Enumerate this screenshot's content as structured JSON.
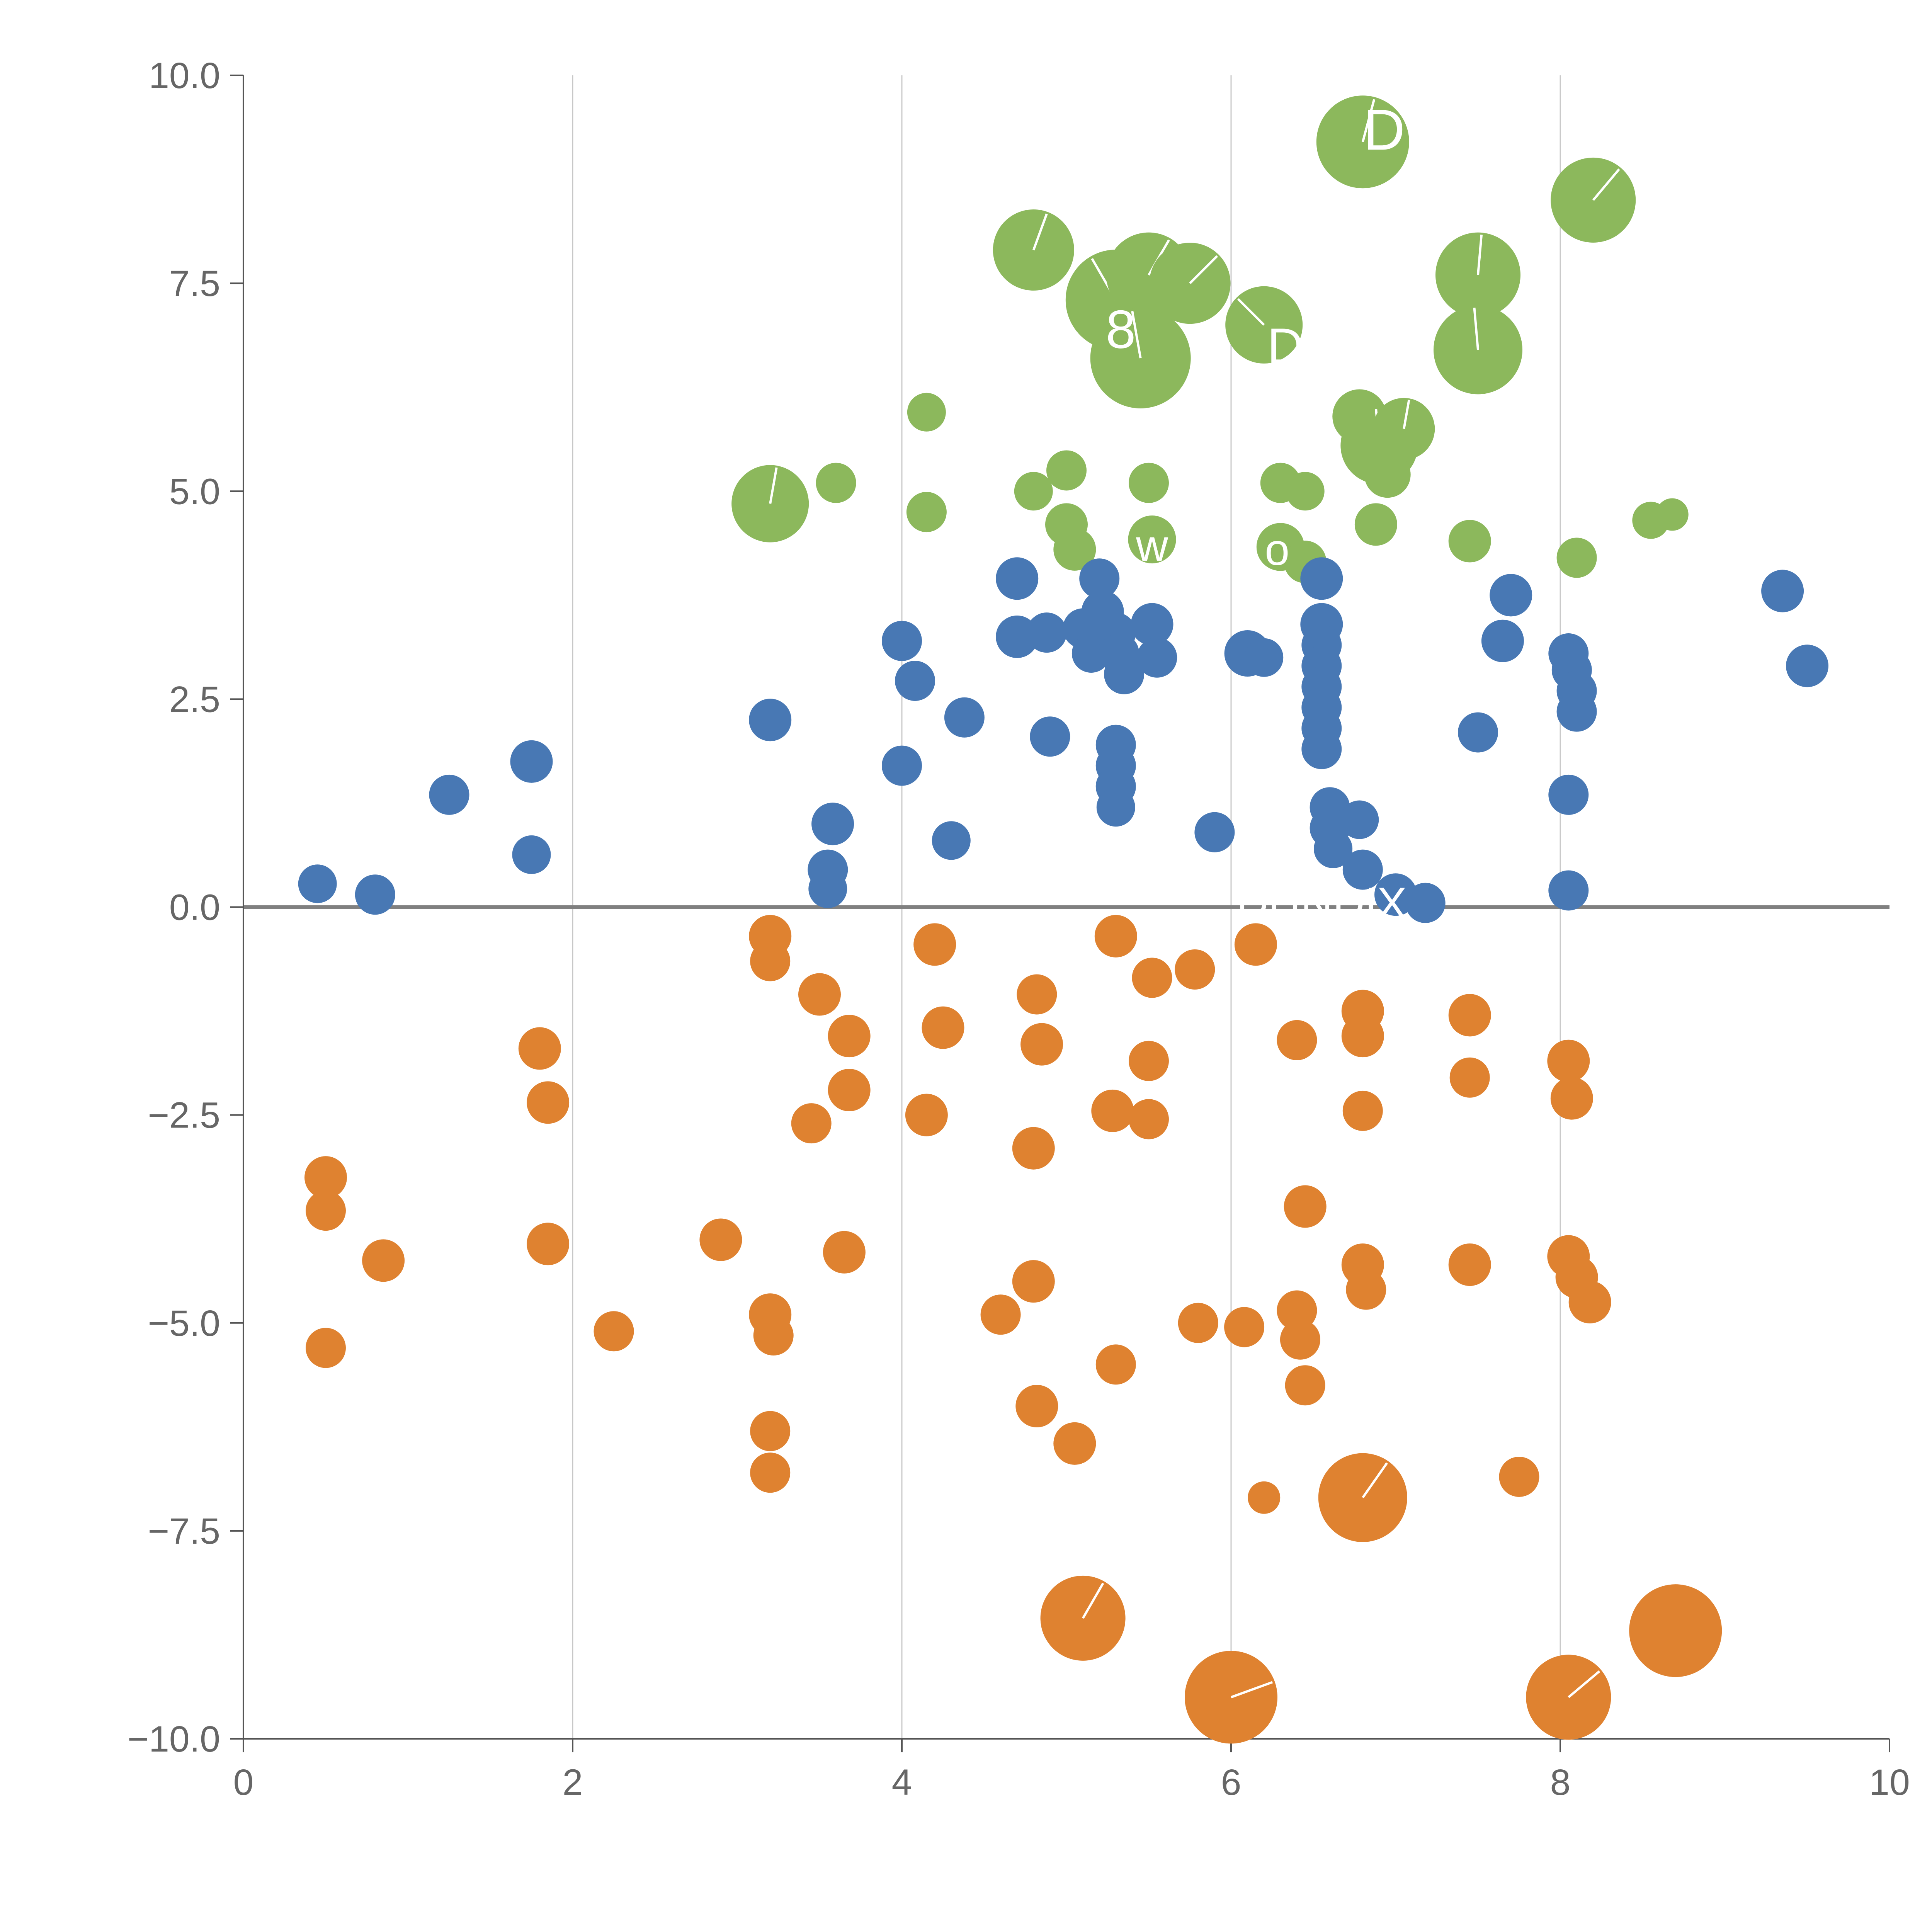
{
  "chart_data": {
    "type": "scatter",
    "title": "",
    "xlabel": "",
    "ylabel": "",
    "xlim": [
      0,
      10
    ],
    "ylim": [
      -10,
      10
    ],
    "legend": "none",
    "grid": {
      "vertical_gridlines_x": [
        2,
        4,
        6,
        8
      ],
      "gridline_color": "#c8c8c8",
      "zero_line_y": 0,
      "zero_line_color": "#808080"
    },
    "axis": {
      "spine_color": "#555555",
      "tick_color": "#555555",
      "label_color": "#666666",
      "x_ticks": [
        {
          "v": 0,
          "label": "0"
        },
        {
          "v": 2,
          "label": "2"
        },
        {
          "v": 4,
          "label": "4"
        },
        {
          "v": 6,
          "label": "6"
        },
        {
          "v": 8,
          "label": "8"
        },
        {
          "v": 10,
          "label": "10"
        }
      ],
      "y_ticks": [
        {
          "v": 10,
          "label": "10.0"
        },
        {
          "v": 7.5,
          "label": "7.5"
        },
        {
          "v": 5,
          "label": "5.0"
        },
        {
          "v": 2.5,
          "label": "2.5"
        },
        {
          "v": 0,
          "label": "0.0"
        },
        {
          "v": -2.5,
          "label": "-2.5"
        },
        {
          "v": -5,
          "label": "-5.0"
        },
        {
          "v": -7.5,
          "label": "-7.5"
        },
        {
          "v": -10,
          "label": "-10.0"
        }
      ]
    },
    "series": [
      {
        "name": "green-cluster",
        "color": "#8CB85C",
        "points": [
          [
            3.2,
            4.85,
            100,
            -80
          ],
          [
            3.6,
            5.1,
            52
          ],
          [
            4.15,
            5.95,
            50
          ],
          [
            4.15,
            4.75,
            52
          ],
          [
            4.8,
            7.9,
            105,
            -70
          ],
          [
            4.8,
            5.0,
            50
          ],
          [
            5.0,
            5.25,
            52
          ],
          [
            5.0,
            4.6,
            55
          ],
          [
            5.05,
            4.3,
            55
          ],
          [
            5.3,
            7.3,
            130,
            -120
          ],
          [
            5.5,
            7.6,
            110,
            -60
          ],
          [
            5.45,
            6.6,
            130,
            -100
          ],
          [
            5.75,
            7.5,
            105,
            -45
          ],
          [
            5.5,
            5.1,
            52
          ],
          [
            5.52,
            4.42,
            62
          ],
          [
            6.2,
            7.0,
            100,
            -135
          ],
          [
            6.3,
            5.1,
            52
          ],
          [
            6.45,
            5.0,
            50
          ],
          [
            6.3,
            4.33,
            62
          ],
          [
            6.45,
            4.15,
            55
          ],
          [
            6.8,
            9.2,
            120,
            -75
          ],
          [
            6.78,
            5.9,
            70
          ],
          [
            6.9,
            5.55,
            100,
            -95
          ],
          [
            6.95,
            5.2,
            60
          ],
          [
            6.88,
            4.6,
            55
          ],
          [
            7.05,
            5.75,
            80,
            -80
          ],
          [
            7.5,
            7.6,
            110,
            -85
          ],
          [
            7.5,
            6.7,
            115,
            -95
          ],
          [
            7.45,
            4.4,
            55
          ],
          [
            8.2,
            8.5,
            110,
            -50
          ],
          [
            8.1,
            4.2,
            52
          ],
          [
            8.55,
            4.65,
            48
          ],
          [
            8.68,
            4.72,
            42
          ]
        ]
      },
      {
        "name": "blue-cluster",
        "color": "#4878B4",
        "points": [
          [
            0.45,
            0.28,
            50
          ],
          [
            0.8,
            0.15,
            52
          ],
          [
            1.25,
            1.35,
            52
          ],
          [
            1.75,
            1.75,
            55
          ],
          [
            1.75,
            0.63,
            50
          ],
          [
            3.2,
            2.25,
            55
          ],
          [
            3.55,
            0.45,
            52
          ],
          [
            3.55,
            0.22,
            50
          ],
          [
            3.58,
            1.0,
            55
          ],
          [
            4.0,
            3.2,
            52
          ],
          [
            4.08,
            2.72,
            52
          ],
          [
            4.0,
            1.7,
            52
          ],
          [
            4.38,
            2.28,
            52
          ],
          [
            4.3,
            0.8,
            50
          ],
          [
            4.7,
            3.95,
            55
          ],
          [
            4.7,
            3.25,
            55
          ],
          [
            4.88,
            3.3,
            52
          ],
          [
            4.9,
            2.05,
            52
          ],
          [
            5.1,
            3.35,
            52
          ],
          [
            5.15,
            3.05,
            50
          ],
          [
            5.2,
            3.95,
            52
          ],
          [
            5.22,
            3.55,
            55
          ],
          [
            5.3,
            3.3,
            52
          ],
          [
            5.32,
            3.05,
            52
          ],
          [
            5.35,
            2.8,
            52
          ],
          [
            5.3,
            1.95,
            52
          ],
          [
            5.3,
            1.7,
            52
          ],
          [
            5.3,
            1.45,
            52
          ],
          [
            5.3,
            1.2,
            50
          ],
          [
            5.52,
            3.4,
            55
          ],
          [
            5.55,
            3.0,
            52
          ],
          [
            5.9,
            0.9,
            52
          ],
          [
            6.1,
            3.05,
            60
          ],
          [
            6.2,
            3.0,
            50
          ],
          [
            6.55,
            3.95,
            55
          ],
          [
            6.55,
            3.4,
            55
          ],
          [
            6.55,
            3.15,
            52
          ],
          [
            6.55,
            2.9,
            52
          ],
          [
            6.55,
            2.65,
            52
          ],
          [
            6.55,
            2.4,
            52
          ],
          [
            6.55,
            2.15,
            52
          ],
          [
            6.55,
            1.9,
            52
          ],
          [
            6.6,
            1.2,
            52
          ],
          [
            6.6,
            0.95,
            52
          ],
          [
            6.62,
            0.7,
            50
          ],
          [
            6.78,
            1.05,
            50
          ],
          [
            6.8,
            0.45,
            52
          ],
          [
            7.0,
            0.15,
            55
          ],
          [
            7.18,
            0.05,
            52
          ],
          [
            7.5,
            2.1,
            52
          ],
          [
            7.7,
            3.75,
            55
          ],
          [
            7.65,
            3.2,
            55
          ],
          [
            8.05,
            3.05,
            52
          ],
          [
            8.07,
            2.85,
            52
          ],
          [
            8.1,
            2.6,
            52
          ],
          [
            8.1,
            2.35,
            52
          ],
          [
            8.05,
            1.35,
            52
          ],
          [
            8.05,
            0.2,
            52
          ],
          [
            9.35,
            3.8,
            55
          ],
          [
            9.5,
            2.9,
            55
          ]
        ]
      },
      {
        "name": "orange-cluster",
        "color": "#DF8230",
        "points": [
          [
            0.5,
            -3.25,
            55
          ],
          [
            0.5,
            -3.65,
            52
          ],
          [
            0.5,
            -5.3,
            52
          ],
          [
            0.85,
            -4.25,
            55
          ],
          [
            1.8,
            -1.7,
            55
          ],
          [
            1.85,
            -2.35,
            55
          ],
          [
            1.85,
            -4.05,
            55
          ],
          [
            2.25,
            -5.1,
            52
          ],
          [
            2.9,
            -4.0,
            55
          ],
          [
            3.2,
            -0.35,
            55
          ],
          [
            3.2,
            -0.65,
            52
          ],
          [
            3.2,
            -4.9,
            55
          ],
          [
            3.22,
            -5.15,
            52
          ],
          [
            3.2,
            -6.3,
            52
          ],
          [
            3.2,
            -6.8,
            52
          ],
          [
            3.5,
            -1.05,
            55
          ],
          [
            3.68,
            -1.55,
            55
          ],
          [
            3.45,
            -2.6,
            52
          ],
          [
            3.68,
            -2.2,
            55
          ],
          [
            3.65,
            -4.15,
            55
          ],
          [
            4.2,
            -0.45,
            55
          ],
          [
            4.25,
            -1.45,
            55
          ],
          [
            4.15,
            -2.5,
            55
          ],
          [
            4.6,
            -4.9,
            52
          ],
          [
            4.82,
            -1.05,
            52
          ],
          [
            4.85,
            -1.65,
            55
          ],
          [
            4.8,
            -2.9,
            55
          ],
          [
            4.8,
            -4.5,
            55
          ],
          [
            4.82,
            -6.0,
            55
          ],
          [
            5.05,
            -6.45,
            55
          ],
          [
            5.1,
            -8.55,
            110,
            -60
          ],
          [
            5.28,
            -2.45,
            55
          ],
          [
            5.3,
            -0.35,
            55
          ],
          [
            5.3,
            -5.5,
            52
          ],
          [
            5.5,
            -1.85,
            52
          ],
          [
            5.5,
            -2.55,
            52
          ],
          [
            5.52,
            -0.85,
            52
          ],
          [
            5.78,
            -0.75,
            52
          ],
          [
            5.8,
            -5.0,
            52
          ],
          [
            6.0,
            -9.5,
            120,
            -20
          ],
          [
            6.08,
            -5.05,
            52
          ],
          [
            6.15,
            -0.45,
            55
          ],
          [
            6.2,
            -7.1,
            42
          ],
          [
            6.4,
            -1.6,
            52
          ],
          [
            6.45,
            -3.6,
            55
          ],
          [
            6.4,
            -4.85,
            52
          ],
          [
            6.42,
            -5.2,
            52
          ],
          [
            6.45,
            -5.75,
            52
          ],
          [
            6.8,
            -1.25,
            55
          ],
          [
            6.8,
            -1.55,
            55
          ],
          [
            6.8,
            -2.45,
            52
          ],
          [
            6.8,
            -4.3,
            55
          ],
          [
            6.82,
            -4.6,
            52
          ],
          [
            6.8,
            -7.1,
            115,
            -55
          ],
          [
            7.45,
            -1.3,
            55
          ],
          [
            7.45,
            -2.05,
            52
          ],
          [
            7.45,
            -4.3,
            55
          ],
          [
            7.75,
            -6.85,
            52
          ],
          [
            8.05,
            -1.85,
            55
          ],
          [
            8.07,
            -2.3,
            55
          ],
          [
            8.05,
            -4.2,
            55
          ],
          [
            8.1,
            -4.45,
            55
          ],
          [
            8.18,
            -4.75,
            55
          ],
          [
            8.05,
            -9.5,
            110,
            -40
          ],
          [
            8.7,
            -8.7,
            120
          ]
        ]
      }
    ],
    "annotations": [
      {
        "text": "D",
        "x": 6.93,
        "y": 9.35,
        "size": 150
      },
      {
        "text": "8",
        "x": 5.33,
        "y": 6.95,
        "size": 140
      },
      {
        "text": "D",
        "x": 6.33,
        "y": 6.75,
        "size": 130
      },
      {
        "text": "w",
        "x": 5.52,
        "y": 4.35,
        "size": 115
      },
      {
        "text": "o",
        "x": 6.28,
        "y": 4.3,
        "size": 115
      },
      {
        "text": "DUNDIX",
        "x": 6.55,
        "y": 0.05,
        "size": 115
      }
    ],
    "annotation_color": "#ffffff",
    "marker_slash_color": "#ffffff"
  }
}
